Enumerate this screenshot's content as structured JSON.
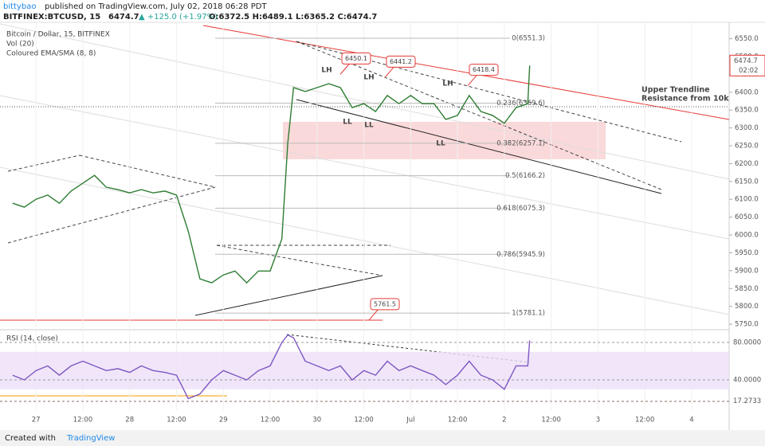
{
  "header": {
    "user": "bittybao",
    "published": "published on TradingView.com, July 02, 2018 06:28 PDT",
    "symbol": "BITFINEX:BTCUSD, 15",
    "last": "6474.7",
    "change": "▲ +125.0 (+1.97%)",
    "ohlc": "O:6372.5 H:6489.1 L:6365.2 C:6474.7"
  },
  "footer": {
    "created": "Created with",
    "brand": "TradingView"
  },
  "chart_data": [
    {
      "type": "line",
      "legend": [
        "Bitcoin / Dollar, 15, BITFINEX",
        "Vol (20)",
        "Coloured EMA/SMA (8, 8)"
      ],
      "color": "#2e7d32",
      "x": [
        -6,
        -3,
        0,
        3,
        6,
        9,
        12,
        15,
        18,
        21,
        24,
        27,
        30,
        33,
        36,
        39,
        42,
        45,
        48,
        51,
        54,
        57,
        60,
        63,
        64.5,
        66,
        69,
        72,
        75,
        78,
        81,
        84,
        87,
        90,
        93,
        96,
        99,
        102,
        105,
        108,
        111,
        114,
        117,
        120,
        123,
        126,
        126.5
      ],
      "values": [
        6089,
        6078,
        6100,
        6112,
        6089,
        6123,
        6145,
        6167,
        6134,
        6127,
        6118,
        6127,
        6118,
        6123,
        6112,
        6011,
        5877,
        5866,
        5888,
        5899,
        5866,
        5899,
        5899,
        5989,
        6257,
        6413,
        6402,
        6413,
        6424,
        6413,
        6357,
        6368,
        6346,
        6391,
        6368,
        6391,
        6368,
        6368,
        6324,
        6335,
        6391,
        6346,
        6335,
        6313,
        6357,
        6368,
        6474.7
      ],
      "xlim": [
        -8.2,
        177.6
      ],
      "ylim": [
        5739,
        6596
      ],
      "yticks": [
        {
          "value": 5750,
          "label": "5750.0"
        },
        {
          "value": 5800,
          "label": "5800.0"
        },
        {
          "value": 5850,
          "label": "5850.0"
        },
        {
          "value": 5900,
          "label": "5900.0"
        },
        {
          "value": 5950,
          "label": "5950.0"
        },
        {
          "value": 6000,
          "label": "6000.0"
        },
        {
          "value": 6050,
          "label": "6050.0"
        },
        {
          "value": 6100,
          "label": "6100.0"
        },
        {
          "value": 6150,
          "label": "6150.0"
        },
        {
          "value": 6200,
          "label": "6200.0"
        },
        {
          "value": 6250,
          "label": "6250.0"
        },
        {
          "value": 6300,
          "label": "6300.0"
        },
        {
          "value": 6350,
          "label": "6350.0"
        },
        {
          "value": 6400,
          "label": "6400.0"
        },
        {
          "value": 6450,
          "label": "6450.0"
        },
        {
          "value": 6500,
          "label": "6500.0"
        },
        {
          "value": 6550,
          "label": "6550.0"
        }
      ],
      "last_price": 6474.7,
      "countdown": "02:02",
      "fib_levels": [
        {
          "value": 6551.3,
          "label": "0(6551.3)"
        },
        {
          "value": 6369.6,
          "label": "0.236(6369.6)"
        },
        {
          "value": 6257.1,
          "label": "0.382(6257.1)"
        },
        {
          "value": 6166.2,
          "label": "0.5(6166.2)"
        },
        {
          "value": 6075.3,
          "label": "0.618(6075.3)"
        },
        {
          "value": 5945.9,
          "label": "0.786(5945.9)"
        },
        {
          "value": 5781.1,
          "label": "1(5781.1)"
        }
      ],
      "callouts": [
        6450.1,
        6441.2,
        6418.4,
        5761.5
      ],
      "swing_labels": [
        "LH",
        "LH",
        "LH",
        "LL",
        "LL",
        "LL"
      ],
      "trendline_label": [
        "Upper Trendline",
        "Resistance from 10k"
      ]
    },
    {
      "type": "line",
      "title": "RSI (14, close)",
      "color": "#7e57c2",
      "values": [
        45,
        40,
        50,
        55,
        45,
        55,
        60,
        55,
        50,
        52,
        48,
        55,
        50,
        48,
        45,
        20,
        25,
        40,
        50,
        45,
        40,
        50,
        55,
        80,
        88,
        85,
        60,
        55,
        50,
        55,
        40,
        50,
        45,
        60,
        50,
        55,
        50,
        45,
        35,
        45,
        60,
        45,
        40,
        30,
        55,
        55,
        82
      ],
      "ylim": [
        7.7,
        90.2
      ],
      "band": [
        30,
        70
      ],
      "yticks": [
        17.2733,
        {
          "value": 40,
          "label": "40.0000"
        },
        {
          "value": 80,
          "label": "80.0000"
        }
      ],
      "xlim": [
        -8.2,
        177.6
      ],
      "xticks": [
        {
          "value": 0,
          "label": "27"
        },
        {
          "value": 12,
          "label": "12:00"
        },
        {
          "value": 24,
          "label": "28"
        },
        {
          "value": 36,
          "label": "12:00"
        },
        {
          "value": 48,
          "label": "29"
        },
        {
          "value": 60,
          "label": "12:00"
        },
        {
          "value": 72,
          "label": "30"
        },
        {
          "value": 84,
          "label": "12:00"
        },
        {
          "value": 96,
          "label": "Jul"
        },
        {
          "value": 108,
          "label": "12:00"
        },
        {
          "value": 120,
          "label": "2"
        },
        {
          "value": 132,
          "label": "12:00"
        },
        {
          "value": 144,
          "label": "3"
        },
        {
          "value": 156,
          "label": "12:00"
        },
        {
          "value": 168,
          "label": "4"
        }
      ]
    }
  ]
}
